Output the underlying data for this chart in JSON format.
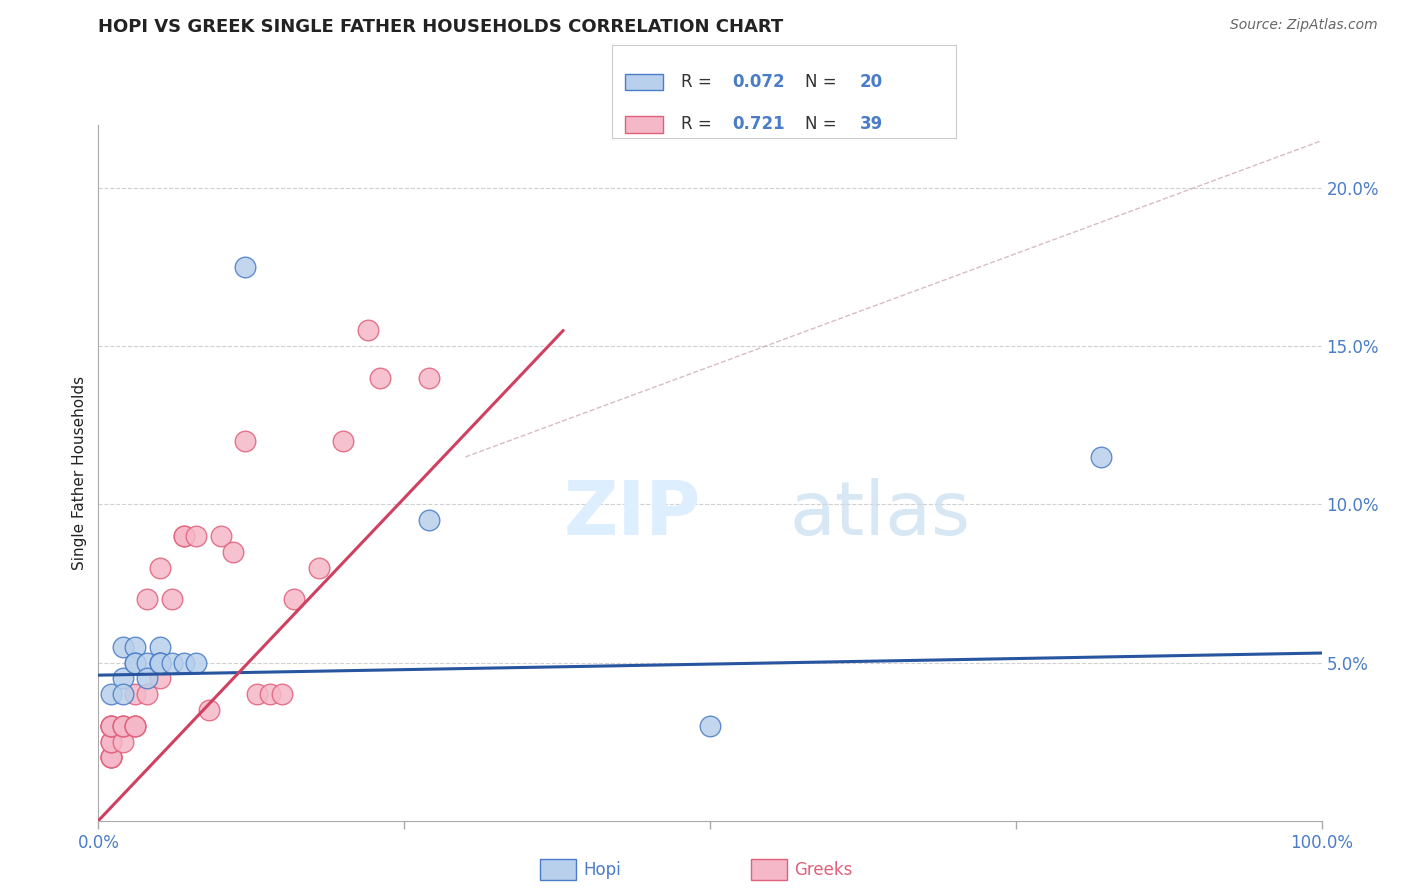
{
  "title": "HOPI VS GREEK SINGLE FATHER HOUSEHOLDS CORRELATION CHART",
  "source": "Source: ZipAtlas.com",
  "ylabel": "Single Father Households",
  "xlim": [
    0,
    1.0
  ],
  "ylim": [
    0.0,
    0.22
  ],
  "hopi_R": 0.072,
  "hopi_N": 20,
  "greek_R": 0.721,
  "greek_N": 39,
  "hopi_color": "#b8d0eb",
  "greek_color": "#f5b8c8",
  "hopi_edge_color": "#4a7cc7",
  "greek_edge_color": "#e0607a",
  "hopi_line_color": "#2855a0",
  "greek_line_color": "#d04060",
  "ref_line_color": "#c8a0a8",
  "grid_color": "#d0d0d0",
  "text_color": "#4a7cc7",
  "title_color": "#222222",
  "source_color": "#666666",
  "watermark_color": "#ddeeff",
  "hopi_x": [
    0.01,
    0.02,
    0.02,
    0.02,
    0.03,
    0.03,
    0.03,
    0.04,
    0.04,
    0.05,
    0.05,
    0.05,
    0.05,
    0.06,
    0.07,
    0.08,
    0.12,
    0.27,
    0.5,
    0.82
  ],
  "hopi_y": [
    0.04,
    0.055,
    0.045,
    0.04,
    0.055,
    0.05,
    0.05,
    0.05,
    0.045,
    0.055,
    0.05,
    0.05,
    0.05,
    0.05,
    0.05,
    0.05,
    0.175,
    0.095,
    0.03,
    0.115
  ],
  "greek_x": [
    0.01,
    0.01,
    0.01,
    0.01,
    0.01,
    0.01,
    0.01,
    0.01,
    0.01,
    0.01,
    0.02,
    0.02,
    0.02,
    0.02,
    0.03,
    0.03,
    0.03,
    0.03,
    0.04,
    0.04,
    0.05,
    0.05,
    0.06,
    0.07,
    0.07,
    0.08,
    0.09,
    0.1,
    0.11,
    0.12,
    0.13,
    0.14,
    0.15,
    0.16,
    0.18,
    0.2,
    0.22,
    0.23,
    0.27
  ],
  "greek_y": [
    0.02,
    0.02,
    0.02,
    0.02,
    0.025,
    0.025,
    0.03,
    0.03,
    0.03,
    0.03,
    0.025,
    0.03,
    0.03,
    0.03,
    0.03,
    0.03,
    0.03,
    0.04,
    0.04,
    0.07,
    0.045,
    0.08,
    0.07,
    0.09,
    0.09,
    0.09,
    0.035,
    0.09,
    0.085,
    0.12,
    0.04,
    0.04,
    0.04,
    0.07,
    0.08,
    0.12,
    0.155,
    0.14,
    0.14
  ],
  "hopi_line_x": [
    0.0,
    1.0
  ],
  "hopi_line_y": [
    0.046,
    0.053
  ],
  "greek_line_x": [
    0.0,
    0.38
  ],
  "greek_line_y": [
    0.0,
    0.155
  ],
  "ref_line_x": [
    0.3,
    1.0
  ],
  "ref_line_y": [
    0.115,
    0.215
  ]
}
